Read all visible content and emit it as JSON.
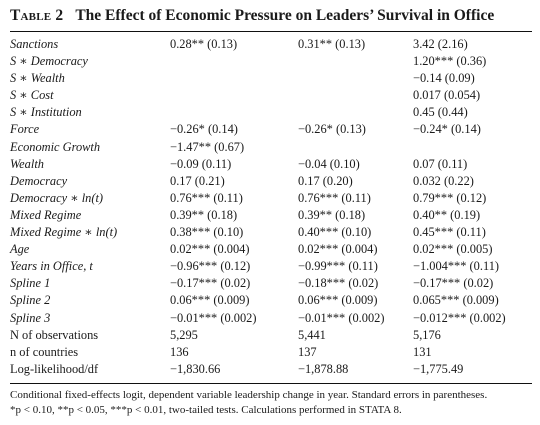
{
  "table": {
    "label": "Table 2",
    "title": "The Effect of Economic Pressure on Leaders’ Survival in Office",
    "rows": [
      {
        "variable": "Sanctions",
        "italic": true,
        "m1": "0.28** (0.13)",
        "m2": "0.31** (0.13)",
        "m3": "3.42 (2.16)"
      },
      {
        "variable": "S ∗ Democracy",
        "italic": true,
        "m1": "",
        "m2": "",
        "m3": "1.20*** (0.36)"
      },
      {
        "variable": "S ∗ Wealth",
        "italic": true,
        "m1": "",
        "m2": "",
        "m3": "−0.14 (0.09)"
      },
      {
        "variable": "S ∗ Cost",
        "italic": true,
        "m1": "",
        "m2": "",
        "m3": "0.017 (0.054)"
      },
      {
        "variable": "S ∗ Institution",
        "italic": true,
        "m1": "",
        "m2": "",
        "m3": "0.45 (0.44)"
      },
      {
        "variable": "Force",
        "italic": true,
        "m1": "−0.26* (0.14)",
        "m2": "−0.26* (0.13)",
        "m3": "−0.24* (0.14)"
      },
      {
        "variable": "Economic Growth",
        "italic": true,
        "m1": "−1.47** (0.67)",
        "m2": "",
        "m3": ""
      },
      {
        "variable": "Wealth",
        "italic": true,
        "m1": "−0.09 (0.11)",
        "m2": "−0.04 (0.10)",
        "m3": "0.07 (0.11)"
      },
      {
        "variable": "Democracy",
        "italic": true,
        "m1": "0.17 (0.21)",
        "m2": "0.17 (0.20)",
        "m3": "0.032 (0.22)"
      },
      {
        "variable": "Democracy ∗ ln(t)",
        "italic": true,
        "m1": "0.76*** (0.11)",
        "m2": "0.76*** (0.11)",
        "m3": "0.79*** (0.12)"
      },
      {
        "variable": "Mixed Regime",
        "italic": true,
        "m1": "0.39** (0.18)",
        "m2": "0.39** (0.18)",
        "m3": "0.40** (0.19)"
      },
      {
        "variable": "Mixed Regime ∗ ln(t)",
        "italic": true,
        "m1": "0.38*** (0.10)",
        "m2": "0.40*** (0.10)",
        "m3": "0.45*** (0.11)"
      },
      {
        "variable": "Age",
        "italic": true,
        "m1": "0.02*** (0.004)",
        "m2": "0.02*** (0.004)",
        "m3": "0.02*** (0.005)"
      },
      {
        "variable": "Years in Office, t",
        "italic": true,
        "m1": "−0.96*** (0.12)",
        "m2": "−0.99*** (0.11)",
        "m3": "−1.004*** (0.11)"
      },
      {
        "variable": "Spline 1",
        "italic": true,
        "m1": "−0.17*** (0.02)",
        "m2": "−0.18*** (0.02)",
        "m3": "−0.17*** (0.02)"
      },
      {
        "variable": "Spline 2",
        "italic": true,
        "m1": "0.06*** (0.009)",
        "m2": "0.06*** (0.009)",
        "m3": "0.065*** (0.009)"
      },
      {
        "variable": "Spline 3",
        "italic": true,
        "m1": "−0.01*** (0.002)",
        "m2": "−0.01*** (0.002)",
        "m3": "−0.012*** (0.002)"
      },
      {
        "variable": "N of observations",
        "italic": false,
        "m1": "5,295",
        "m2": "5,441",
        "m3": "5,176"
      },
      {
        "variable": "n of countries",
        "italic": false,
        "m1": "136",
        "m2": "137",
        "m3": "131"
      },
      {
        "variable": "Log-likelihood/df",
        "italic": false,
        "m1": "−1,830.66",
        "m2": "−1,878.88",
        "m3": "−1,775.49"
      }
    ]
  },
  "notes": {
    "line1": "Conditional fixed-effects logit, dependent variable leadership change in year. Standard errors in parentheses.",
    "line2": "*p < 0.10, **p < 0.05, ***p < 0.01, two-tailed tests. Calculations performed in STATA 8."
  }
}
